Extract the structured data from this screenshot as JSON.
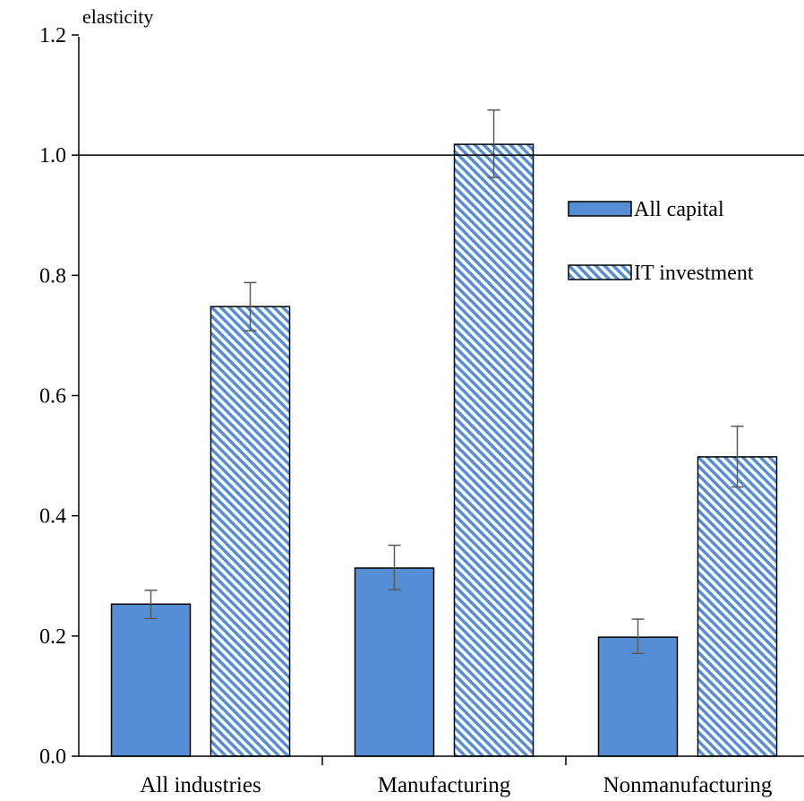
{
  "chart_data": {
    "type": "bar",
    "ylabel": "elasticity",
    "ylim": [
      0,
      1.2
    ],
    "yticks": [
      "0.0",
      "0.2",
      "0.4",
      "0.6",
      "0.8",
      "1.0",
      "1.2"
    ],
    "reference_line": 1.0,
    "categories": [
      "All industries",
      "Manufacturing",
      "Nonmanufacturing"
    ],
    "series": [
      {
        "name": "All capital",
        "values": [
          0.253,
          0.313,
          0.198
        ],
        "error_low": [
          0.229,
          0.277,
          0.171
        ],
        "error_high": [
          0.276,
          0.351,
          0.228
        ],
        "color": "#558ed5",
        "pattern": "solid"
      },
      {
        "name": "IT investment",
        "values": [
          0.748,
          1.018,
          0.498
        ],
        "error_low": [
          0.708,
          0.963,
          0.448
        ],
        "error_high": [
          0.788,
          1.075,
          0.549
        ],
        "color": "#558ed5",
        "pattern": "diagonal-stripes"
      }
    ],
    "legend_position": "upper-right",
    "grid": false
  }
}
